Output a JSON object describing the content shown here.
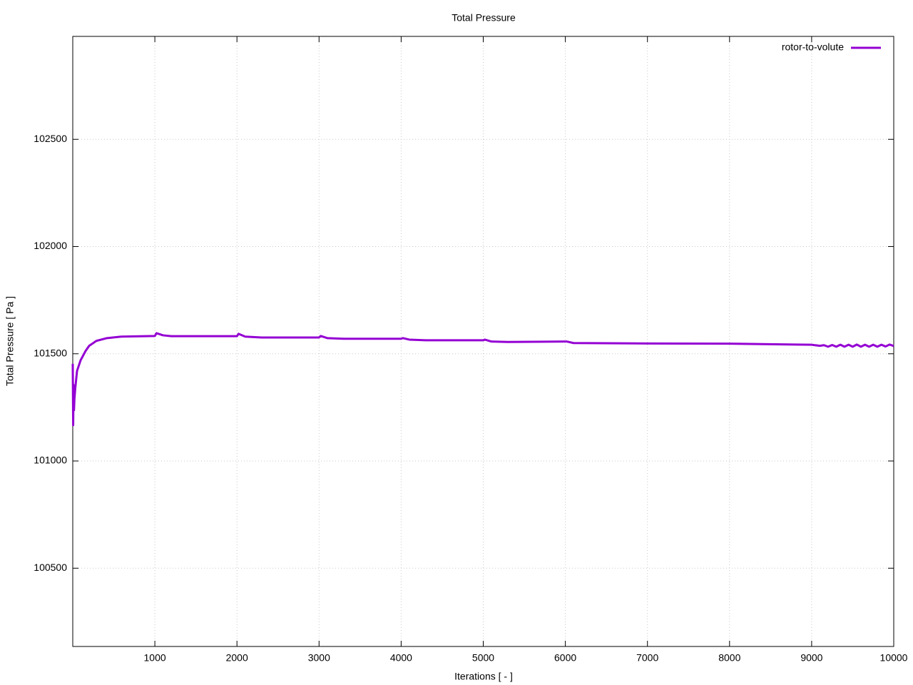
{
  "chart_data": {
    "type": "line",
    "title": "Total Pressure",
    "xlabel": "Iterations [ - ]",
    "ylabel": "Total Pressure [ Pa ]",
    "xlim": [
      0,
      10000
    ],
    "ylim": [
      100135,
      102980
    ],
    "xticks": [
      1000,
      2000,
      3000,
      4000,
      5000,
      6000,
      7000,
      8000,
      9000,
      10000
    ],
    "yticks": [
      100500,
      101000,
      101500,
      102000,
      102500
    ],
    "grid": true,
    "legend": "upper right",
    "series": [
      {
        "name": "rotor-to-volute",
        "color": "#9400d3",
        "x": [
          0,
          5,
          10,
          15,
          20,
          30,
          52,
          96,
          156,
          200,
          287,
          417,
          591,
          1000,
          1020,
          1100,
          1200,
          2000,
          2020,
          2100,
          2300,
          3000,
          3020,
          3100,
          3300,
          4000,
          4020,
          4100,
          4300,
          5000,
          5020,
          5100,
          5300,
          6000,
          6020,
          6100,
          7000,
          8000,
          8800,
          9000,
          9100,
          9150,
          9200,
          9250,
          9300,
          9350,
          9400,
          9450,
          9500,
          9550,
          9600,
          9650,
          9700,
          9750,
          9800,
          9850,
          9900,
          9950,
          10000
        ],
        "values": [
          101453,
          101167,
          101354,
          101237,
          101287,
          101337,
          101420,
          101470,
          101513,
          101537,
          101560,
          101573,
          101580,
          101583,
          101596,
          101586,
          101582,
          101582,
          101593,
          101580,
          101576,
          101576,
          101583,
          101573,
          101570,
          101570,
          101573,
          101566,
          101563,
          101563,
          101566,
          101557,
          101555,
          101557,
          101557,
          101550,
          101548,
          101547,
          101543,
          101542,
          101537,
          101540,
          101533,
          101541,
          101533,
          101542,
          101533,
          101542,
          101533,
          101543,
          101533,
          101542,
          101533,
          101542,
          101533,
          101542,
          101534,
          101543,
          101536
        ]
      }
    ]
  }
}
